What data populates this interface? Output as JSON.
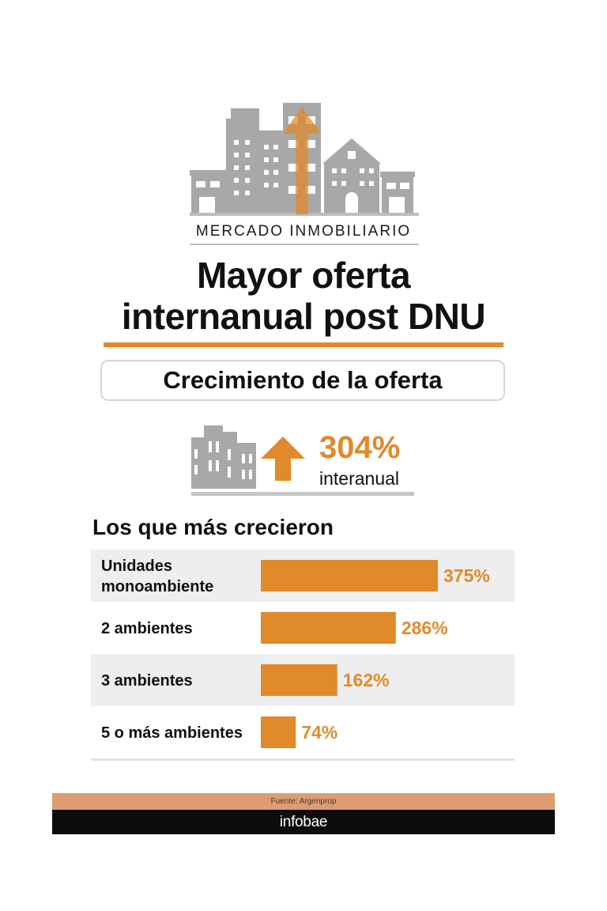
{
  "header": {
    "kicker": "MERCADO INMOBILIARIO",
    "headline_line1": "Mayor oferta",
    "headline_line2": "internanual post DNU",
    "subtitle": "Crecimiento de la oferta"
  },
  "kpi": {
    "value": "304%",
    "label": "interanual"
  },
  "section": {
    "title": "Los que más crecieron"
  },
  "colors": {
    "accent": "#e08a2b",
    "building_gray": "#a8a8a8",
    "row_shade": "#eeeeee",
    "footer_band": "#dc9d70",
    "footer_black": "#0d0d0d"
  },
  "icons": {
    "hero": "buildings-with-up-arrow-icon",
    "kpi": "building-with-up-arrow-icon"
  },
  "chart_data": {
    "type": "bar",
    "orientation": "horizontal",
    "categories": [
      [
        "Unidades",
        "monoambiente"
      ],
      [
        "2 ambientes"
      ],
      [
        "3 ambientes"
      ],
      [
        "5 o más ambientes"
      ]
    ],
    "values": [
      375,
      286,
      162,
      74
    ],
    "value_labels": [
      "375%",
      "286%",
      "162%",
      "74%"
    ],
    "title": "Los que más crecieron",
    "xlabel": "",
    "ylabel": "",
    "grid": false
  },
  "footer": {
    "source": "Fuente: Argenprop",
    "brand": "infobae"
  }
}
